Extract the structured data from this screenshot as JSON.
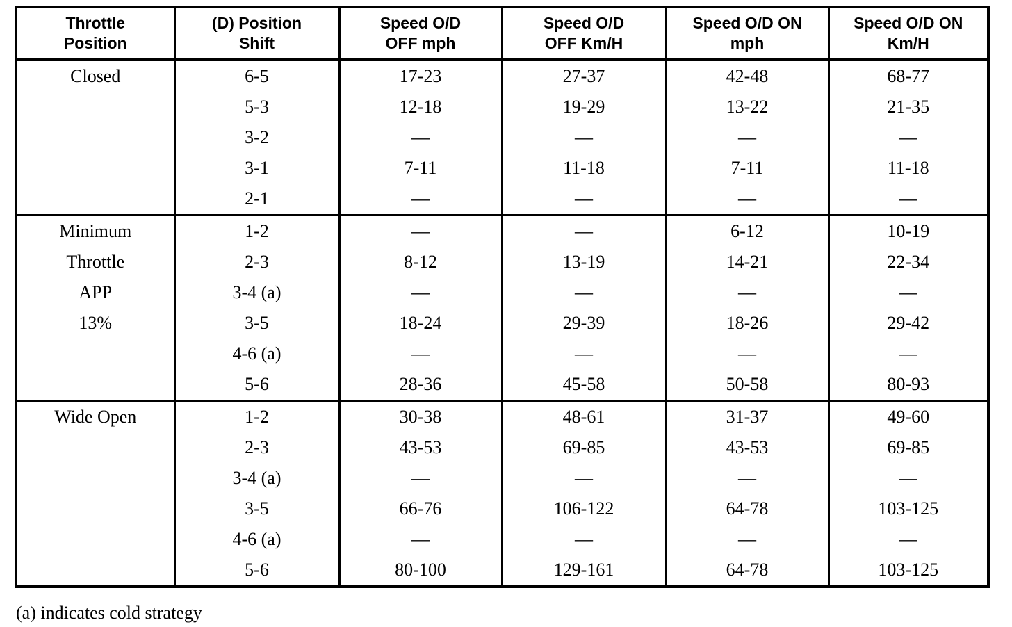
{
  "table": {
    "columns": [
      {
        "id": "throttle-position",
        "lines": [
          "Throttle",
          "Position"
        ]
      },
      {
        "id": "position-shift",
        "lines": [
          "(D) Position",
          "Shift"
        ]
      },
      {
        "id": "speed-od-off-mph",
        "lines": [
          "Speed O/D",
          "OFF mph"
        ]
      },
      {
        "id": "speed-od-off-kmh",
        "lines": [
          "Speed O/D",
          "OFF Km/H"
        ]
      },
      {
        "id": "speed-od-on-mph",
        "lines": [
          "Speed O/D ON",
          "mph"
        ]
      },
      {
        "id": "speed-od-on-kmh",
        "lines": [
          "Speed O/D ON",
          "Km/H"
        ]
      }
    ],
    "sections": [
      {
        "throttle_labels": [
          "Closed"
        ],
        "rows": [
          [
            "6-5",
            "17-23",
            "27-37",
            "42-48",
            "68-77"
          ],
          [
            "5-3",
            "12-18",
            "19-29",
            "13-22",
            "21-35"
          ],
          [
            "3-2",
            "—",
            "—",
            "—",
            "—"
          ],
          [
            "3-1",
            "7-11",
            "11-18",
            "7-11",
            "11-18"
          ],
          [
            "2-1",
            "—",
            "—",
            "—",
            "—"
          ]
        ]
      },
      {
        "throttle_labels": [
          "Minimum",
          "Throttle",
          "APP",
          "13%"
        ],
        "rows": [
          [
            "1-2",
            "—",
            "—",
            "6-12",
            "10-19"
          ],
          [
            "2-3",
            "8-12",
            "13-19",
            "14-21",
            "22-34"
          ],
          [
            "3-4 (a)",
            "—",
            "—",
            "—",
            "—"
          ],
          [
            "3-5",
            "18-24",
            "29-39",
            "18-26",
            "29-42"
          ],
          [
            "4-6 (a)",
            "—",
            "—",
            "—",
            "—"
          ],
          [
            "5-6",
            "28-36",
            "45-58",
            "50-58",
            "80-93"
          ]
        ]
      },
      {
        "throttle_labels": [
          "Wide Open"
        ],
        "rows": [
          [
            "1-2",
            "30-38",
            "48-61",
            "31-37",
            "49-60"
          ],
          [
            "2-3",
            "43-53",
            "69-85",
            "43-53",
            "69-85"
          ],
          [
            "3-4 (a)",
            "—",
            "—",
            "—",
            "—"
          ],
          [
            "3-5",
            "66-76",
            "106-122",
            "64-78",
            "103-125"
          ],
          [
            "4-6 (a)",
            "—",
            "—",
            "—",
            "—"
          ],
          [
            "5-6",
            "80-100",
            "129-161",
            "64-78",
            "103-125"
          ]
        ]
      }
    ],
    "cell_names": [
      "shift-cell",
      "od-off-mph-cell",
      "od-off-kmh-cell",
      "od-on-mph-cell",
      "od-on-kmh-cell"
    ],
    "footnote": "(a) indicates cold strategy",
    "ink_color": "#000000",
    "paper_color": "#ffffff"
  }
}
